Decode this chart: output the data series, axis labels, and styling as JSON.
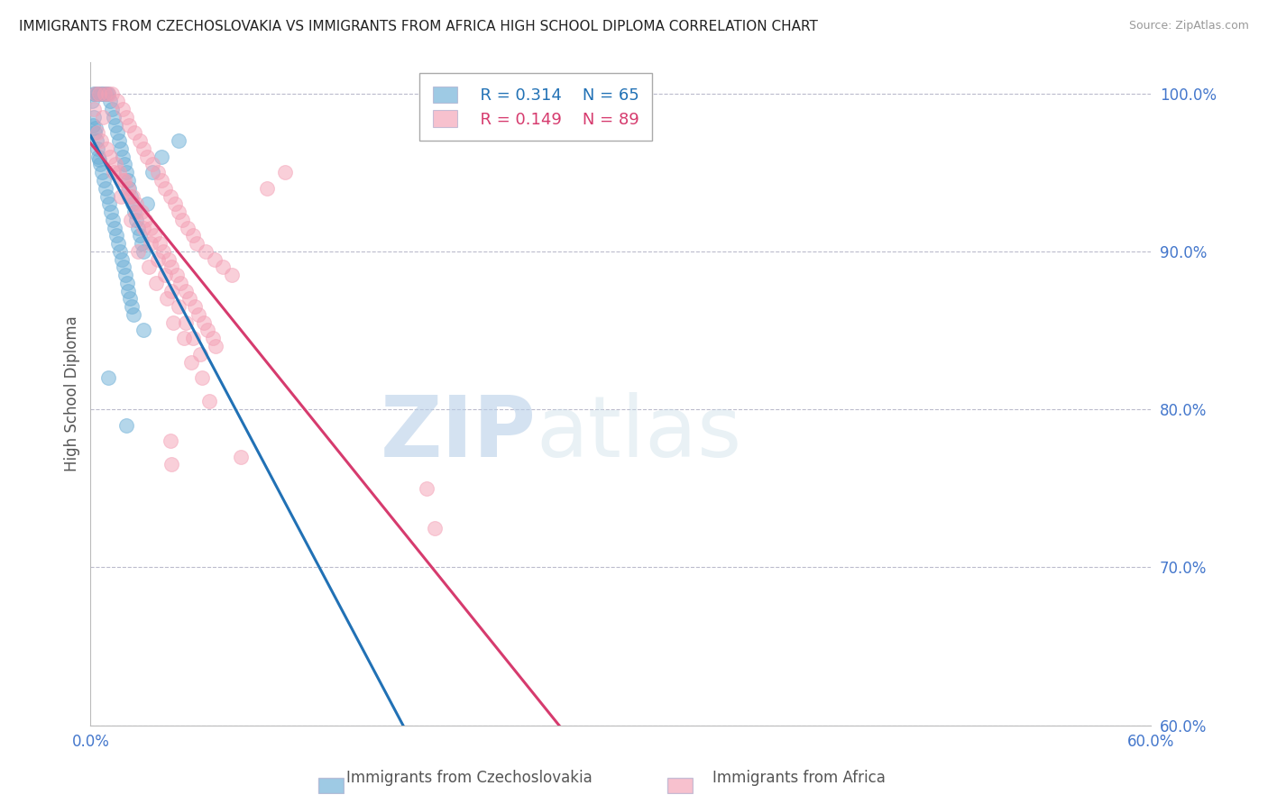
{
  "title": "IMMIGRANTS FROM CZECHOSLOVAKIA VS IMMIGRANTS FROM AFRICA HIGH SCHOOL DIPLOMA CORRELATION CHART",
  "source": "Source: ZipAtlas.com",
  "ylabel": "High School Diploma",
  "right_yticks": [
    100.0,
    90.0,
    80.0,
    70.0,
    60.0
  ],
  "legend1_r": "R = 0.314",
  "legend1_n": "N = 65",
  "legend2_r": "R = 0.149",
  "legend2_n": "N = 89",
  "blue_color": "#6baed6",
  "blue_line_color": "#2171b5",
  "pink_color": "#f4a0b5",
  "pink_line_color": "#d63b6e",
  "watermark_zip": "ZIP",
  "watermark_atlas": "atlas",
  "blue_scatter_x": [
    0.2,
    0.3,
    0.4,
    0.5,
    0.6,
    0.7,
    0.8,
    0.9,
    1.0,
    1.1,
    1.2,
    1.3,
    1.4,
    1.5,
    1.6,
    1.7,
    1.8,
    1.9,
    2.0,
    2.1,
    2.2,
    2.3,
    2.4,
    2.5,
    2.6,
    2.7,
    2.8,
    2.9,
    3.0,
    3.2,
    3.5,
    0.15,
    0.25,
    0.35,
    0.45,
    0.55,
    0.65,
    0.75,
    0.85,
    0.95,
    1.05,
    1.15,
    1.25,
    1.35,
    1.45,
    1.55,
    1.65,
    1.75,
    1.85,
    1.95,
    2.05,
    2.15,
    2.25,
    2.35,
    2.45,
    4.0,
    5.0,
    0.1,
    0.2,
    0.3,
    0.4,
    0.5,
    1.0,
    2.0,
    3.0
  ],
  "blue_scatter_y": [
    100.0,
    100.0,
    100.0,
    100.0,
    100.0,
    100.0,
    100.0,
    100.0,
    100.0,
    99.5,
    99.0,
    98.5,
    98.0,
    97.5,
    97.0,
    96.5,
    96.0,
    95.5,
    95.0,
    94.5,
    94.0,
    93.5,
    93.0,
    92.5,
    92.0,
    91.5,
    91.0,
    90.5,
    90.0,
    93.0,
    95.0,
    98.0,
    97.5,
    97.0,
    96.0,
    95.5,
    95.0,
    94.5,
    94.0,
    93.5,
    93.0,
    92.5,
    92.0,
    91.5,
    91.0,
    90.5,
    90.0,
    89.5,
    89.0,
    88.5,
    88.0,
    87.5,
    87.0,
    86.5,
    86.0,
    96.0,
    97.0,
    99.5,
    98.5,
    97.8,
    96.5,
    95.8,
    82.0,
    79.0,
    85.0
  ],
  "pink_scatter_x": [
    0.3,
    0.5,
    0.8,
    1.0,
    1.2,
    1.5,
    1.8,
    2.0,
    2.2,
    2.5,
    2.8,
    3.0,
    3.2,
    3.5,
    3.8,
    4.0,
    4.2,
    4.5,
    4.8,
    5.0,
    5.2,
    5.5,
    5.8,
    6.0,
    6.5,
    7.0,
    7.5,
    8.0,
    10.0,
    11.0,
    0.4,
    0.6,
    0.9,
    1.1,
    1.4,
    1.6,
    1.9,
    2.1,
    2.4,
    2.6,
    2.9,
    3.1,
    3.4,
    3.6,
    3.9,
    4.1,
    4.4,
    4.6,
    4.9,
    5.1,
    5.4,
    5.6,
    5.9,
    6.1,
    6.4,
    6.6,
    6.9,
    7.1,
    0.2,
    0.7,
    1.3,
    1.7,
    2.3,
    2.7,
    3.3,
    3.7,
    4.3,
    4.7,
    5.3,
    5.7,
    6.3,
    6.7,
    1.8,
    2.2,
    2.6,
    3.0,
    3.4,
    3.8,
    4.2,
    4.6,
    5.0,
    5.4,
    5.8,
    6.2,
    4.5,
    4.6,
    8.5,
    19.0,
    19.5
  ],
  "pink_scatter_y": [
    100.0,
    100.0,
    100.0,
    100.0,
    100.0,
    99.5,
    99.0,
    98.5,
    98.0,
    97.5,
    97.0,
    96.5,
    96.0,
    95.5,
    95.0,
    94.5,
    94.0,
    93.5,
    93.0,
    92.5,
    92.0,
    91.5,
    91.0,
    90.5,
    90.0,
    89.5,
    89.0,
    88.5,
    94.0,
    95.0,
    97.5,
    97.0,
    96.5,
    96.0,
    95.5,
    95.0,
    94.5,
    94.0,
    93.5,
    93.0,
    92.5,
    92.0,
    91.5,
    91.0,
    90.5,
    90.0,
    89.5,
    89.0,
    88.5,
    88.0,
    87.5,
    87.0,
    86.5,
    86.0,
    85.5,
    85.0,
    84.5,
    84.0,
    99.0,
    98.5,
    95.0,
    93.5,
    92.0,
    90.0,
    89.0,
    88.0,
    87.0,
    85.5,
    84.5,
    83.0,
    82.0,
    80.5,
    94.5,
    93.5,
    92.5,
    91.5,
    90.5,
    89.5,
    88.5,
    87.5,
    86.5,
    85.5,
    84.5,
    83.5,
    78.0,
    76.5,
    77.0,
    75.0,
    72.5
  ],
  "xlim": [
    0,
    60
  ],
  "ylim": [
    60,
    102
  ],
  "grid_color": "#bbbbcc",
  "title_fontsize": 11,
  "axis_label_color": "#4477cc"
}
